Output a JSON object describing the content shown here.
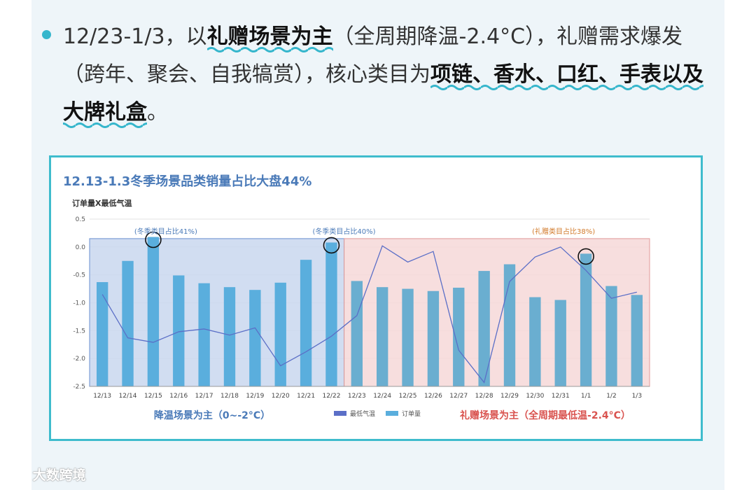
{
  "paragraph": {
    "p1": "12/23-1/3，以",
    "h1": "礼赠场景为主",
    "p2": "（全周期降温-2.4°C），礼赠需求爆发（跨年、聚会、自我犒赏），核心类目为",
    "h2": "项链、香水、口红、手表以及大牌礼盒",
    "p3": "。"
  },
  "card": {
    "title": "12.13-1.3冬季场景品类销量占比大盘44%"
  },
  "watermark": {
    "text": "大数跨境"
  },
  "colors": {
    "accent": "#35b6cc",
    "bar": "#5aaedd",
    "line": "#5b6fc7",
    "blue_zone": "#c9d7ef",
    "red_zone": "#f6d8d8",
    "blue_text": "#4a7ab8",
    "red_text": "#d9534f"
  },
  "chart_data": {
    "type": "bar",
    "ylabel": "订单量X最低气温",
    "ylim": [
      -2.5,
      0.5
    ],
    "yticks": [
      "0.5",
      "0.0",
      "-0.5",
      "-1.0",
      "-1.5",
      "-2.0",
      "-2.5"
    ],
    "categories": [
      "12/13",
      "12/14",
      "12/15",
      "12/16",
      "12/17",
      "12/18",
      "12/19",
      "12/20",
      "12/21",
      "12/22",
      "12/23",
      "12/24",
      "12/25",
      "12/26",
      "12/27",
      "12/28",
      "12/29",
      "12/30",
      "12/31",
      "1/1",
      "1/2",
      "1/3"
    ],
    "series": [
      {
        "name": "订单量",
        "type": "bar",
        "values": [
          -0.63,
          -0.25,
          0.18,
          -0.51,
          -0.65,
          -0.72,
          -0.77,
          -0.64,
          -0.23,
          0.08,
          -0.61,
          -0.72,
          -0.75,
          -0.79,
          -0.73,
          -0.43,
          -0.31,
          -0.9,
          -0.95,
          -0.12,
          -0.7,
          -0.86
        ]
      },
      {
        "name": "最低气温",
        "type": "line",
        "values": [
          -0.85,
          -1.63,
          -1.71,
          -1.52,
          -1.47,
          -1.58,
          -1.45,
          -2.13,
          -1.88,
          -1.6,
          -1.23,
          0.02,
          -0.27,
          -0.08,
          -1.85,
          -2.43,
          -0.62,
          -0.18,
          0.0,
          -0.42,
          -0.92,
          -0.81
        ]
      }
    ],
    "zones": [
      {
        "label": "降温场景为主（0~-2°C）",
        "from": "12/13",
        "to": "12/22"
      },
      {
        "label": "礼赠场景为主（全周期最低温-2.4°C）",
        "from": "12/23",
        "to": "1/3"
      }
    ],
    "annotations": [
      {
        "text": "(冬季类目占比41%)",
        "category": "12/15"
      },
      {
        "text": "(冬季类目占比40%)",
        "category": "12/22"
      },
      {
        "text": "(礼赠类目占比38%)",
        "category": "1/1"
      }
    ],
    "circled": [
      "12/15",
      "12/22",
      "1/1"
    ],
    "legend": [
      "最低气温",
      "订单量"
    ],
    "legend_position": "bottom-center",
    "grid": true
  }
}
